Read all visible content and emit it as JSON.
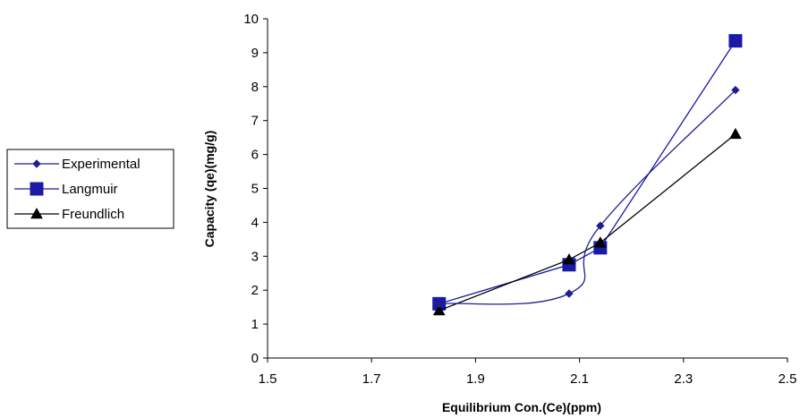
{
  "chart_data": {
    "type": "line",
    "title": "",
    "xlabel": "Equilibrium Con.(Ce)(ppm)",
    "ylabel": "Capacity (qe)(mg/g)",
    "xlim": [
      1.5,
      2.5
    ],
    "ylim": [
      0,
      10
    ],
    "x_ticks": [
      "1.5",
      "1.7",
      "1.9",
      "2.1",
      "2.3",
      "2.5"
    ],
    "y_ticks": [
      "0",
      "1",
      "2",
      "3",
      "4",
      "5",
      "6",
      "7",
      "8",
      "9",
      "10"
    ],
    "grid": false,
    "legend_position": "left",
    "series": [
      {
        "name": "Experimental",
        "color": "#1f1f8f",
        "marker": "diamond",
        "smooth": true,
        "x": [
          1.83,
          2.08,
          2.14,
          2.4
        ],
        "y": [
          1.6,
          1.9,
          3.9,
          7.9
        ]
      },
      {
        "name": "Langmuir",
        "color": "#1a1aa6",
        "marker": "square",
        "smooth": false,
        "x": [
          1.83,
          2.08,
          2.14,
          2.4
        ],
        "y": [
          1.6,
          2.75,
          3.25,
          9.35
        ]
      },
      {
        "name": "Freundlich",
        "color": "#000000",
        "marker": "triangle",
        "smooth": false,
        "x": [
          1.83,
          2.08,
          2.14,
          2.4
        ],
        "y": [
          1.4,
          2.9,
          3.4,
          6.6
        ]
      }
    ]
  }
}
